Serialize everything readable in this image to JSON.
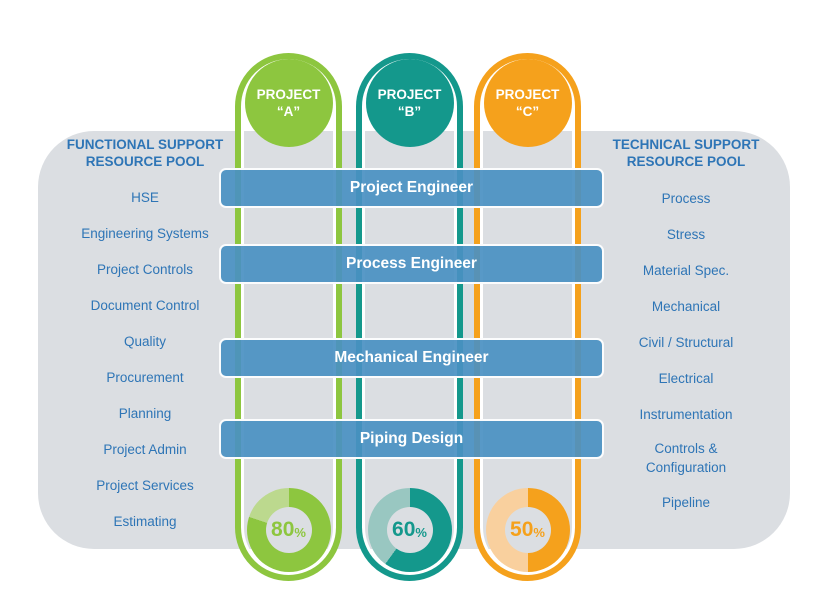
{
  "colors": {
    "panel_bg": "#DBDEE2",
    "bar_blue": "#4A90C2",
    "label_blue": "#2E75B6",
    "project_a_green": "#8DC63F",
    "project_b_teal": "#14988C",
    "project_c_orange": "#F5A11C"
  },
  "left_pool": {
    "title_line1": "FUNCTIONAL SUPPORT",
    "title_line2": "RESOURCE POOL",
    "items": [
      "HSE",
      "Engineering Systems",
      "Project Controls",
      "Document Control",
      "Quality",
      "Procurement",
      "Planning",
      "Project Admin",
      "Project Services",
      "Estimating"
    ]
  },
  "right_pool": {
    "title_line1": "TECHNICAL SUPPORT",
    "title_line2": "RESOURCE POOL",
    "items": [
      "Process",
      "Stress",
      "Material Spec.",
      "Mechanical",
      "Civil / Structural",
      "Electrical",
      "Instrumentation",
      "Controls & Configuration",
      "Pipeline"
    ]
  },
  "projects": [
    {
      "line1": "PROJECT",
      "line2": "“A”",
      "color": "#8DC63F",
      "color_light": "#BCD98E",
      "allocation_percent": 80,
      "percent_unit": "%"
    },
    {
      "line1": "PROJECT",
      "line2": "“B”",
      "color": "#14988C",
      "color_light": "#99C7C1",
      "allocation_percent": 60,
      "percent_unit": "%"
    },
    {
      "line1": "PROJECT",
      "line2": "“C”",
      "color": "#F5A11C",
      "color_light": "#F9D09E",
      "allocation_percent": 50,
      "percent_unit": "%"
    }
  ],
  "roles": [
    "Project Engineer",
    "Process Engineer",
    "Mechanical Engineer",
    "Piping Design"
  ]
}
